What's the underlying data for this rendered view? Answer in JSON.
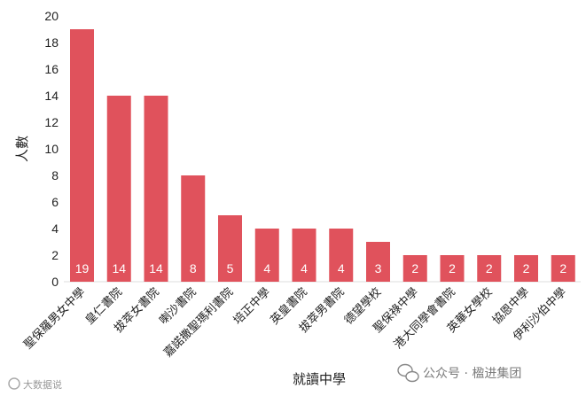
{
  "chart_data": {
    "type": "bar",
    "categories": [
      "聖保羅男女中學",
      "皇仁書院",
      "拔萃女書院",
      "喇沙書院",
      "嘉諾撒聖瑪利書院",
      "培正中學",
      "英皇書院",
      "拔萃男書院",
      "德望學校",
      "聖保祿中學",
      "港大同學會書院",
      "英華女學校",
      "協恩中學",
      "伊利沙伯中學"
    ],
    "values": [
      19,
      14,
      14,
      8,
      5,
      4,
      4,
      4,
      3,
      2,
      2,
      2,
      2,
      2
    ],
    "data_labels": [
      "19",
      "14",
      "14",
      "8",
      "5",
      "4",
      "4",
      "4",
      "3",
      "2",
      "2",
      "2",
      "2",
      "2"
    ],
    "xlabel": "就讀中學",
    "ylabel": "人數",
    "ylim": [
      0,
      20
    ],
    "yticks": [
      0,
      2,
      4,
      6,
      8,
      10,
      12,
      14,
      16,
      18,
      20
    ],
    "grid": false,
    "bar_color": "#e0525c"
  },
  "watermark": {
    "left_text": "大数据说",
    "right_text": "公众号 · 楹进集团"
  }
}
